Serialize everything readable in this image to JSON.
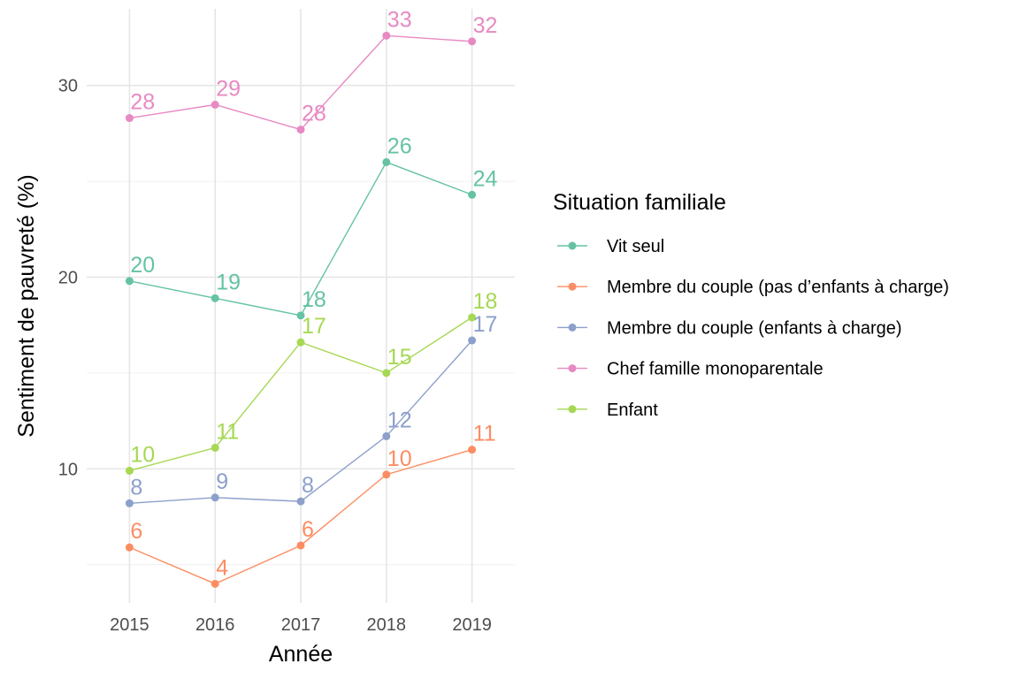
{
  "chart_data": {
    "type": "line",
    "xlabel": "Année",
    "ylabel": "Sentiment de pauvreté (%)",
    "x": [
      2015,
      2016,
      2017,
      2018,
      2019
    ],
    "xlim": [
      2014.5,
      2019.5
    ],
    "ylim": [
      3.0,
      34.0
    ],
    "yticks": [
      10,
      20,
      30
    ],
    "y_minor_gridlines": [
      5,
      15,
      25
    ],
    "grid": true,
    "legend_title": "Situation familiale",
    "legend_position": "right",
    "series": [
      {
        "name": "Vit seul",
        "color": "#66C2A5",
        "values": [
          19.8,
          18.9,
          18.0,
          26.0,
          24.3
        ],
        "labels": [
          "20",
          "19",
          "18",
          "26",
          "24"
        ]
      },
      {
        "name": "Membre du couple (pas d’enfants à charge)",
        "color": "#FC8D62",
        "values": [
          5.9,
          4.0,
          6.0,
          9.7,
          11.0
        ],
        "labels": [
          "6",
          "4",
          "6",
          "10",
          "11"
        ]
      },
      {
        "name": "Membre du couple (enfants à charge)",
        "color": "#8DA0CB",
        "values": [
          8.2,
          8.5,
          8.3,
          11.7,
          16.7
        ],
        "labels": [
          "8",
          "9",
          "8",
          "12",
          "17"
        ]
      },
      {
        "name": "Chef famille monoparentale",
        "color": "#E78AC3",
        "values": [
          28.3,
          29.0,
          27.7,
          32.6,
          32.3
        ],
        "labels": [
          "28",
          "29",
          "28",
          "33",
          "32"
        ]
      },
      {
        "name": "Enfant",
        "color": "#A6D854",
        "values": [
          9.9,
          11.1,
          16.6,
          15.0,
          17.9
        ],
        "labels": [
          "10",
          "11",
          "17",
          "15",
          "18"
        ]
      }
    ]
  }
}
